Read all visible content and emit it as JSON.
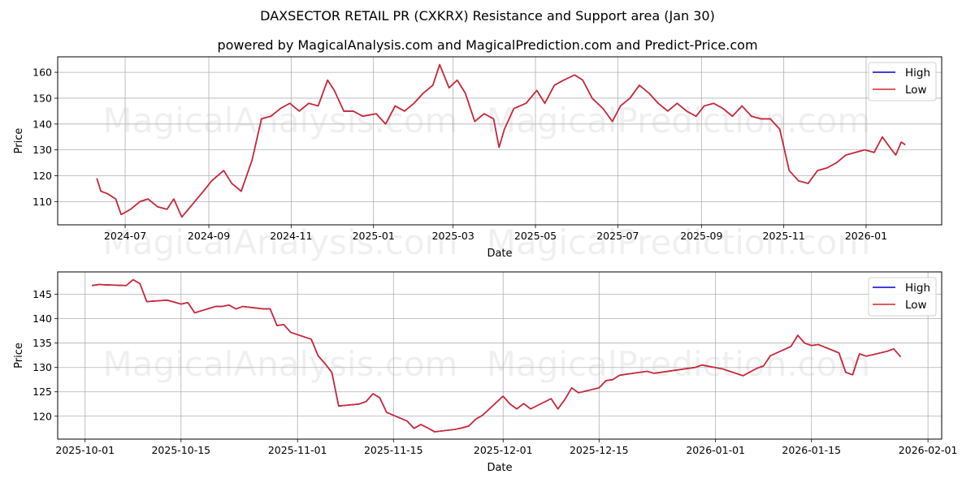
{
  "header": {
    "title": "DAXSECTOR RETAIL PR (CXKRX) Resistance and Support area (Jan 30)",
    "subtitle": "powered by MagicalAnalysis.com and MagicalPrediction.com and Predict-Price.com"
  },
  "watermarks": [
    "MagicalAnalysis.com",
    "MagicalPrediction.com"
  ],
  "colors": {
    "high": "#0000cc",
    "low": "#d62728",
    "grid": "#b0b0b0"
  },
  "chart_data": [
    {
      "type": "line",
      "title": "",
      "xlabel": "Date",
      "ylabel": "Price",
      "ylim": [
        101,
        166
      ],
      "yticks": [
        110,
        120,
        130,
        140,
        150,
        160
      ],
      "xticks": [
        "2024-07",
        "2024-09",
        "2024-11",
        "2025-01",
        "2025-03",
        "2025-05",
        "2025-07",
        "2025-09",
        "2025-11",
        "2026-01"
      ],
      "grid": true,
      "legend_position": "upper right",
      "legend": [
        "High",
        "Low"
      ],
      "x": [
        "2024-06-10",
        "2024-06-13",
        "2024-06-18",
        "2024-06-24",
        "2024-06-28",
        "2024-07-05",
        "2024-07-12",
        "2024-07-18",
        "2024-07-25",
        "2024-08-01",
        "2024-08-06",
        "2024-08-12",
        "2024-08-20",
        "2024-08-28",
        "2024-09-03",
        "2024-09-12",
        "2024-09-18",
        "2024-09-25",
        "2024-10-03",
        "2024-10-10",
        "2024-10-17",
        "2024-10-24",
        "2024-10-31",
        "2024-11-07",
        "2024-11-14",
        "2024-11-21",
        "2024-11-28",
        "2024-12-03",
        "2024-12-10",
        "2024-12-17",
        "2024-12-24",
        "2025-01-03",
        "2025-01-10",
        "2025-01-17",
        "2025-01-24",
        "2025-01-31",
        "2025-02-07",
        "2025-02-14",
        "2025-02-19",
        "2025-02-26",
        "2025-03-04",
        "2025-03-10",
        "2025-03-17",
        "2025-03-24",
        "2025-03-31",
        "2025-04-04",
        "2025-04-08",
        "2025-04-15",
        "2025-04-24",
        "2025-05-02",
        "2025-05-08",
        "2025-05-15",
        "2025-05-22",
        "2025-05-30",
        "2025-06-05",
        "2025-06-12",
        "2025-06-20",
        "2025-06-27",
        "2025-07-03",
        "2025-07-10",
        "2025-07-17",
        "2025-07-24",
        "2025-07-31",
        "2025-08-07",
        "2025-08-14",
        "2025-08-21",
        "2025-08-28",
        "2025-09-03",
        "2025-09-10",
        "2025-09-17",
        "2025-09-24",
        "2025-10-01",
        "2025-10-08",
        "2025-10-15",
        "2025-10-22",
        "2025-10-29",
        "2025-11-05",
        "2025-11-12",
        "2025-11-19",
        "2025-11-26",
        "2025-12-03",
        "2025-12-10",
        "2025-12-17",
        "2025-12-24",
        "2025-12-31",
        "2026-01-07",
        "2026-01-13",
        "2026-01-20",
        "2026-01-23",
        "2026-01-27",
        "2026-01-30"
      ],
      "series": [
        {
          "name": "High",
          "values": [
            119,
            114,
            113,
            111,
            105,
            107,
            110,
            111,
            108,
            107,
            111,
            104,
            109,
            114,
            118,
            122,
            117,
            114,
            126,
            142,
            143,
            146,
            148,
            145,
            148,
            147,
            157,
            153,
            145,
            145,
            143,
            144,
            140,
            147,
            145,
            148,
            152,
            155,
            163,
            154,
            157,
            152,
            141,
            144,
            142,
            131,
            138,
            146,
            148,
            153,
            148,
            155,
            157,
            159,
            157,
            150,
            146,
            141,
            147,
            150,
            155,
            152,
            148,
            145,
            148,
            145,
            143,
            147,
            148,
            146,
            143,
            147,
            143,
            142,
            142,
            138,
            122,
            118,
            117,
            122,
            123,
            125,
            128,
            129,
            130,
            129,
            135,
            130,
            128,
            133,
            132
          ]
        },
        {
          "name": "Low",
          "values": [
            119,
            114,
            113,
            111,
            105,
            107,
            110,
            111,
            108,
            107,
            111,
            104,
            109,
            114,
            118,
            122,
            117,
            114,
            126,
            142,
            143,
            146,
            148,
            145,
            148,
            147,
            157,
            153,
            145,
            145,
            143,
            144,
            140,
            147,
            145,
            148,
            152,
            155,
            163,
            154,
            157,
            152,
            141,
            144,
            142,
            131,
            138,
            146,
            148,
            153,
            148,
            155,
            157,
            159,
            157,
            150,
            146,
            141,
            147,
            150,
            155,
            152,
            148,
            145,
            148,
            145,
            143,
            147,
            148,
            146,
            143,
            147,
            143,
            142,
            142,
            138,
            122,
            118,
            117,
            122,
            123,
            125,
            128,
            129,
            130,
            129,
            135,
            130,
            128,
            133,
            132
          ]
        }
      ]
    },
    {
      "type": "line",
      "title": "",
      "xlabel": "Date",
      "ylabel": "Price",
      "ylim": [
        115.3,
        149.6
      ],
      "yticks": [
        120,
        125,
        130,
        135,
        140,
        145
      ],
      "xticks": [
        "2025-10-01",
        "2025-10-15",
        "2025-11-01",
        "2025-11-15",
        "2025-12-01",
        "2025-12-15",
        "2026-01-01",
        "2026-01-15",
        "2026-02-01"
      ],
      "grid": true,
      "legend_position": "upper right",
      "legend": [
        "High",
        "Low"
      ],
      "x": [
        "2025-10-02",
        "2025-10-03",
        "2025-10-07",
        "2025-10-08",
        "2025-10-09",
        "2025-10-10",
        "2025-10-13",
        "2025-10-14",
        "2025-10-15",
        "2025-10-16",
        "2025-10-17",
        "2025-10-20",
        "2025-10-21",
        "2025-10-22",
        "2025-10-23",
        "2025-10-24",
        "2025-10-27",
        "2025-10-28",
        "2025-10-29",
        "2025-10-30",
        "2025-10-31",
        "2025-11-03",
        "2025-11-04",
        "2025-11-05",
        "2025-11-06",
        "2025-11-07",
        "2025-11-10",
        "2025-11-11",
        "2025-11-12",
        "2025-11-13",
        "2025-11-14",
        "2025-11-17",
        "2025-11-18",
        "2025-11-19",
        "2025-11-20",
        "2025-11-21",
        "2025-11-24",
        "2025-11-25",
        "2025-11-26",
        "2025-11-27",
        "2025-11-28",
        "2025-12-01",
        "2025-12-02",
        "2025-12-03",
        "2025-12-04",
        "2025-12-05",
        "2025-12-08",
        "2025-12-09",
        "2025-12-10",
        "2025-12-11",
        "2025-12-12",
        "2025-12-15",
        "2025-12-16",
        "2025-12-17",
        "2025-12-18",
        "2025-12-19",
        "2025-12-22",
        "2025-12-23",
        "2025-12-29",
        "2025-12-30",
        "2026-01-02",
        "2026-01-05",
        "2026-01-07",
        "2026-01-08",
        "2026-01-09",
        "2026-01-12",
        "2026-01-13",
        "2026-01-14",
        "2026-01-15",
        "2026-01-16",
        "2026-01-19",
        "2026-01-20",
        "2026-01-21",
        "2026-01-22",
        "2026-01-23",
        "2026-01-26",
        "2026-01-27",
        "2026-01-28"
      ],
      "series": [
        {
          "name": "High",
          "values": [
            146.8,
            147.0,
            146.8,
            148.0,
            147.2,
            143.5,
            143.8,
            143.4,
            143.0,
            143.3,
            141.2,
            142.5,
            142.5,
            142.8,
            142.0,
            142.5,
            142.0,
            142.0,
            138.6,
            138.8,
            137.2,
            135.8,
            132.4,
            130.8,
            129.0,
            122.1,
            122.5,
            123.0,
            124.6,
            123.8,
            120.8,
            119.0,
            117.5,
            118.3,
            117.6,
            116.8,
            117.3,
            117.6,
            118.0,
            119.4,
            120.2,
            124.1,
            122.5,
            121.5,
            122.6,
            121.5,
            123.6,
            121.5,
            123.4,
            125.8,
            124.8,
            125.8,
            127.3,
            127.5,
            128.4,
            128.6,
            129.2,
            128.8,
            130.0,
            130.5,
            129.7,
            128.3,
            129.8,
            130.3,
            132.4,
            134.3,
            136.6,
            135.0,
            134.5,
            134.7,
            133.0,
            129.0,
            128.5,
            132.8,
            132.3,
            133.3,
            133.8,
            132.2
          ]
        },
        {
          "name": "Low",
          "values": [
            146.8,
            147.0,
            146.8,
            148.0,
            147.2,
            143.5,
            143.8,
            143.4,
            143.0,
            143.3,
            141.2,
            142.5,
            142.5,
            142.8,
            142.0,
            142.5,
            142.0,
            142.0,
            138.6,
            138.8,
            137.2,
            135.8,
            132.4,
            130.8,
            129.0,
            122.1,
            122.5,
            123.0,
            124.6,
            123.8,
            120.8,
            119.0,
            117.5,
            118.3,
            117.6,
            116.8,
            117.3,
            117.6,
            118.0,
            119.4,
            120.2,
            124.1,
            122.5,
            121.5,
            122.6,
            121.5,
            123.6,
            121.5,
            123.4,
            125.8,
            124.8,
            125.8,
            127.3,
            127.5,
            128.4,
            128.6,
            129.2,
            128.8,
            130.0,
            130.5,
            129.7,
            128.3,
            129.8,
            130.3,
            132.4,
            134.3,
            136.6,
            135.0,
            134.5,
            134.7,
            133.0,
            129.0,
            128.5,
            132.8,
            132.3,
            133.3,
            133.8,
            132.2
          ]
        }
      ]
    }
  ]
}
